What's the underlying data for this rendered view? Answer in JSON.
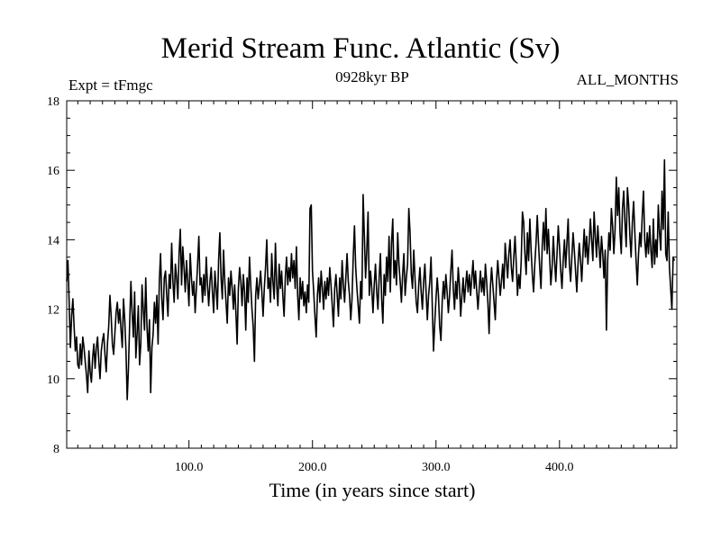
{
  "chart_data": {
    "type": "line",
    "title": "Merid Stream Func. Atlantic (Sv)",
    "subtitle": "0928kyr BP",
    "left_label": "Expt = tFmgc",
    "right_label": "ALL_MONTHS",
    "xlabel": "Time (in years since start)",
    "ylabel": "",
    "xlim": [
      1,
      495
    ],
    "ylim": [
      8,
      18
    ],
    "x_ticks": [
      100,
      200,
      300,
      400
    ],
    "x_tick_labels": [
      "100.0",
      "200.0",
      "300.0",
      "400.0"
    ],
    "y_ticks": [
      8,
      10,
      12,
      14,
      16,
      18
    ],
    "y_tick_labels": [
      "8",
      "10",
      "12",
      "14",
      "16",
      "18"
    ],
    "series": [
      {
        "name": "Merid Stream Func. Atlantic",
        "x_start": 1,
        "x_step": 1,
        "values": [
          12.8,
          13.4,
          12.2,
          10.9,
          11.8,
          12.3,
          11.5,
          10.8,
          11.2,
          10.4,
          10.3,
          11.0,
          10.4,
          11.2,
          10.9,
          10.5,
          10.1,
          9.6,
          10.8,
          10.2,
          9.9,
          10.6,
          11.0,
          10.3,
          10.9,
          11.2,
          10.5,
          10.0,
          10.8,
          11.1,
          11.3,
          10.7,
          10.2,
          11.0,
          11.5,
          12.4,
          11.8,
          11.0,
          10.7,
          11.3,
          11.9,
          12.2,
          11.6,
          12.0,
          11.4,
          10.9,
          12.3,
          11.7,
          10.8,
          9.4,
          10.3,
          11.6,
          12.8,
          11.9,
          11.2,
          12.5,
          10.6,
          11.3,
          12.1,
          10.4,
          11.0,
          12.7,
          12.0,
          11.4,
          12.9,
          11.5,
          10.8,
          11.7,
          9.6,
          10.9,
          11.3,
          12.2,
          11.6,
          12.4,
          11.0,
          12.8,
          13.6,
          12.3,
          11.7,
          12.9,
          13.1,
          12.4,
          11.8,
          13.0,
          12.6,
          13.9,
          12.8,
          12.2,
          13.3,
          12.9,
          12.3,
          13.6,
          14.3,
          12.7,
          13.8,
          13.2,
          12.5,
          13.4,
          12.8,
          12.1,
          13.6,
          12.9,
          12.4,
          12.8,
          11.9,
          12.6,
          13.3,
          14.1,
          12.7,
          12.9,
          12.2,
          13.0,
          12.4,
          13.5,
          12.7,
          12.1,
          12.8,
          13.2,
          12.5,
          11.9,
          13.1,
          12.6,
          12.0,
          13.4,
          14.2,
          12.9,
          12.3,
          13.7,
          12.8,
          12.2,
          11.6,
          12.9,
          12.4,
          13.1,
          12.6,
          12.0,
          12.7,
          11.9,
          11.0,
          12.6,
          13.2,
          12.8,
          12.1,
          13.0,
          12.5,
          11.4,
          12.9,
          12.2,
          13.5,
          12.7,
          12.0,
          11.5,
          10.5,
          12.4,
          12.9,
          12.3,
          12.7,
          13.1,
          12.5,
          11.8,
          12.6,
          13.2,
          14.0,
          12.6,
          12.9,
          12.2,
          13.6,
          12.8,
          12.3,
          13.9,
          12.7,
          12.1,
          13.3,
          12.6,
          13.1,
          12.4,
          11.8,
          12.9,
          13.5,
          12.7,
          13.2,
          12.8,
          13.6,
          12.9,
          13.4,
          12.6,
          13.8,
          12.4,
          11.7,
          12.9,
          12.3,
          12.8,
          12.1,
          12.5,
          11.9,
          12.7,
          12.2,
          14.9,
          15.0,
          13.1,
          12.5,
          11.8,
          11.2,
          12.4,
          12.9,
          12.2,
          13.1,
          12.6,
          12.0,
          12.8,
          12.3,
          12.9,
          12.4,
          13.2,
          12.7,
          12.1,
          11.5,
          12.6,
          13.0,
          12.4,
          11.8,
          12.9,
          12.3,
          13.4,
          12.7,
          12.2,
          12.9,
          13.6,
          12.8,
          12.4,
          11.7,
          12.3,
          13.5,
          14.4,
          13.2,
          12.6,
          12.1,
          11.6,
          12.8,
          12.3,
          15.3,
          14.1,
          12.9,
          13.7,
          14.8,
          12.4,
          13.1,
          12.6,
          11.9,
          12.7,
          13.3,
          12.5,
          12.0,
          12.9,
          13.6,
          12.3,
          11.6,
          13.0,
          12.4,
          13.5,
          12.8,
          14.1,
          12.5,
          13.9,
          14.6,
          12.9,
          13.4,
          12.7,
          14.2,
          13.3,
          12.8,
          12.2,
          13.0,
          13.6,
          12.4,
          12.9,
          13.3,
          14.9,
          14.2,
          13.0,
          12.6,
          13.7,
          12.9,
          12.2,
          11.9,
          12.7,
          13.2,
          12.5,
          12.0,
          12.8,
          13.3,
          12.5,
          11.7,
          12.4,
          12.8,
          13.5,
          12.1,
          10.8,
          11.6,
          12.3,
          12.9,
          12.4,
          11.5,
          11.1,
          12.2,
          12.8,
          12.3,
          13.0,
          12.5,
          11.9,
          12.4,
          13.1,
          13.7,
          12.6,
          12.0,
          12.8,
          12.3,
          13.2,
          12.7,
          11.8,
          12.4,
          12.9,
          12.2,
          12.7,
          13.1,
          12.5,
          13.0,
          12.4,
          12.9,
          13.4,
          12.6,
          13.1,
          12.5,
          12.0,
          12.6,
          13.1,
          12.5,
          12.9,
          12.4,
          13.3,
          12.8,
          12.2,
          11.3,
          12.6,
          13.2,
          12.7,
          12.2,
          11.7,
          12.8,
          13.4,
          12.9,
          12.4,
          12.8,
          13.3,
          12.6,
          13.9,
          13.4,
          12.9,
          13.6,
          14.0,
          13.2,
          12.8,
          13.5,
          14.1,
          13.3,
          12.4,
          13.0,
          12.6,
          13.4,
          14.8,
          14.5,
          13.6,
          13.0,
          14.2,
          13.4,
          14.6,
          13.7,
          13.0,
          12.5,
          13.3,
          13.9,
          14.7,
          13.9,
          13.2,
          12.6,
          13.8,
          14.5,
          13.7,
          14.9,
          13.6,
          14.3,
          13.5,
          12.7,
          13.2,
          14.1,
          13.4,
          12.8,
          13.6,
          14.4,
          13.8,
          13.1,
          12.6,
          13.4,
          14.0,
          13.2,
          13.9,
          14.6,
          13.3,
          12.8,
          13.5,
          14.2,
          13.7,
          13.1,
          12.5,
          13.3,
          13.9,
          13.4,
          12.8,
          13.6,
          14.3,
          13.5,
          14.1,
          13.3,
          13.9,
          14.6,
          14.0,
          13.4,
          14.8,
          14.1,
          13.5,
          14.4,
          13.8,
          13.2,
          14.1,
          13.6,
          12.9,
          13.7,
          11.4,
          13.4,
          14.2,
          13.7,
          14.9,
          14.4,
          13.6,
          14.3,
          15.8,
          14.7,
          15.5,
          14.2,
          13.6,
          14.9,
          15.4,
          14.5,
          13.8,
          15.5,
          15.0,
          14.1,
          13.5,
          14.5,
          15.1,
          14.2,
          13.4,
          12.7,
          13.6,
          14.2,
          13.8,
          14.7,
          15.4,
          14.0,
          13.5,
          14.2,
          13.6,
          14.4,
          13.7,
          13.2,
          14.6,
          13.3,
          14.0,
          13.5,
          15.0,
          14.2,
          13.7,
          15.4,
          14.3,
          16.3,
          13.6,
          13.4,
          14.8,
          13.2,
          12.6,
          12.0,
          13.5,
          13.4
        ]
      }
    ]
  }
}
